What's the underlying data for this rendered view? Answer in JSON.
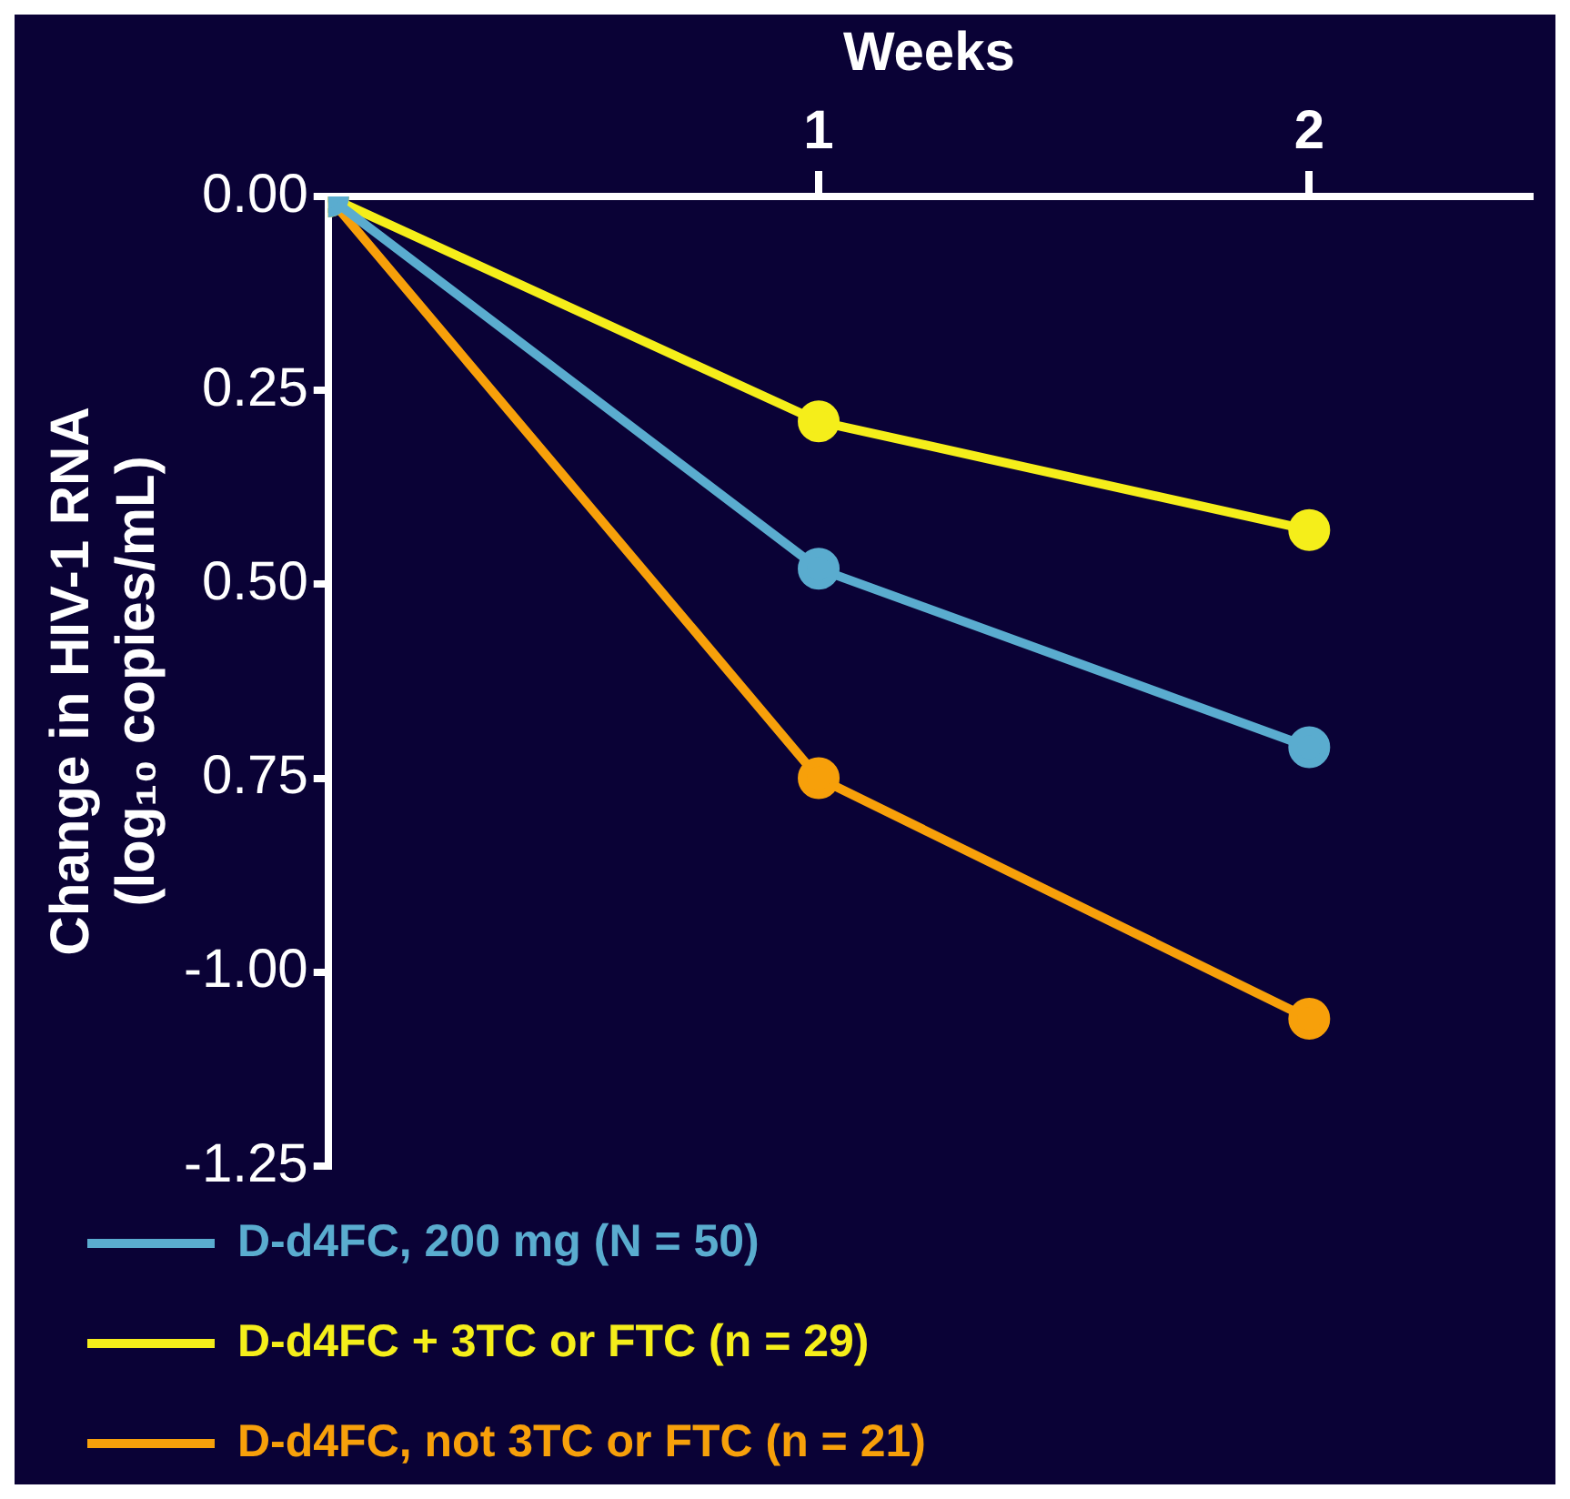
{
  "chart_data": {
    "type": "line",
    "xlabel": "Weeks",
    "ylabel": "Change in HIV-1 RNA\n(log₁₀ copies/mL)",
    "x": [
      0,
      1,
      2
    ],
    "xlim": [
      0,
      2.45
    ],
    "xticks": [
      1,
      2
    ],
    "ylim": [
      -1.25,
      0
    ],
    "yticks": [
      {
        "value": 0,
        "label": "0.00"
      },
      {
        "value": -0.25,
        "label": "0.25"
      },
      {
        "value": -0.5,
        "label": "0.50"
      },
      {
        "value": -0.75,
        "label": "0.75"
      },
      {
        "value": -1,
        "label": "-1.00"
      },
      {
        "value": -1.25,
        "label": "-1.25"
      }
    ],
    "series": [
      {
        "name": "D-d4FC, 200 mg (N = 50)",
        "color": "#5aaccf",
        "values": [
          0,
          -0.48,
          -0.71
        ]
      },
      {
        "name": "D-d4FC + 3TC or FTC (n = 29)",
        "color": "#f5ee1a",
        "values": [
          0,
          -0.29,
          -0.43
        ]
      },
      {
        "name": "D-d4FC, not 3TC or FTC (n = 21)",
        "color": "#f7a00a",
        "values": [
          0,
          -0.75,
          -1.06
        ]
      }
    ],
    "marker": "circle",
    "grid": false,
    "legend": "bottom"
  }
}
